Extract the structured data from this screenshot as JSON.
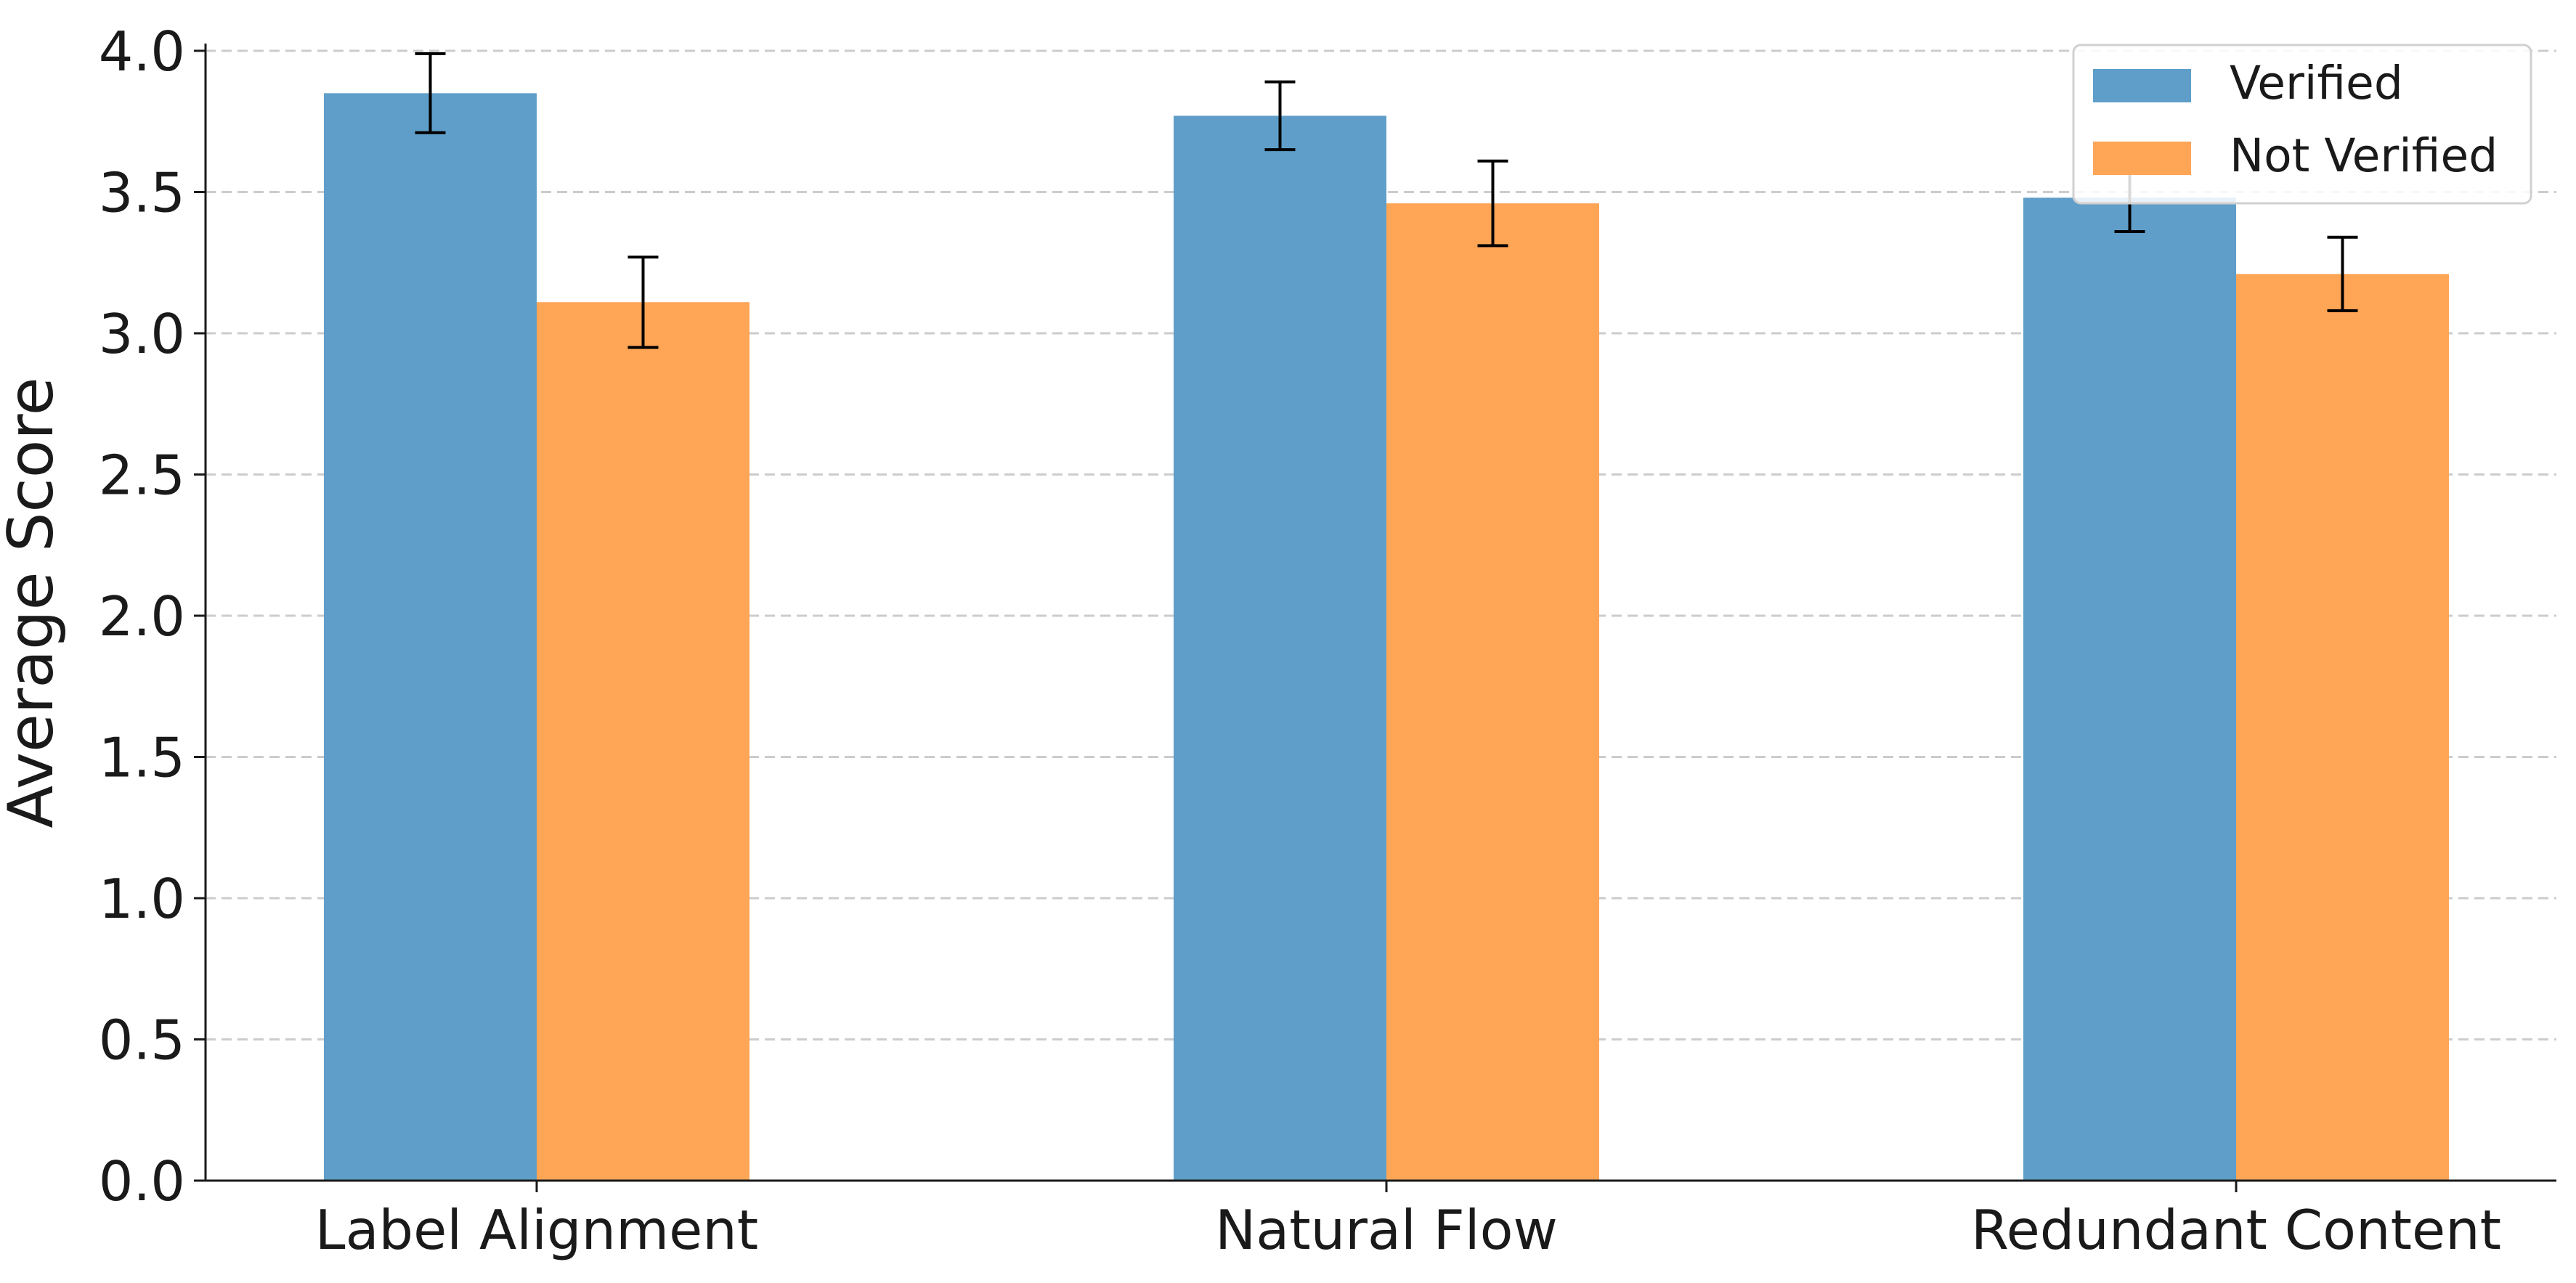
{
  "chart_data": {
    "type": "bar",
    "categories": [
      "Label Alignment",
      "Natural Flow",
      "Redundant Content"
    ],
    "series": [
      {
        "name": "Verified",
        "color": "#5f9ec9",
        "values": [
          3.85,
          3.77,
          3.48
        ],
        "errors": [
          0.14,
          0.12,
          0.12
        ]
      },
      {
        "name": "Not Verified",
        "color": "#ffa556",
        "values": [
          3.11,
          3.46,
          3.21
        ],
        "errors": [
          0.16,
          0.15,
          0.13
        ]
      }
    ],
    "ylabel": "Average Score",
    "xlabel": "",
    "ylim": [
      0,
      4.0
    ],
    "yticks": [
      "0.0",
      "0.5",
      "1.0",
      "1.5",
      "2.0",
      "2.5",
      "3.0",
      "3.5",
      "4.0"
    ],
    "grid": "y-dashed",
    "legend_position": "top-right"
  }
}
